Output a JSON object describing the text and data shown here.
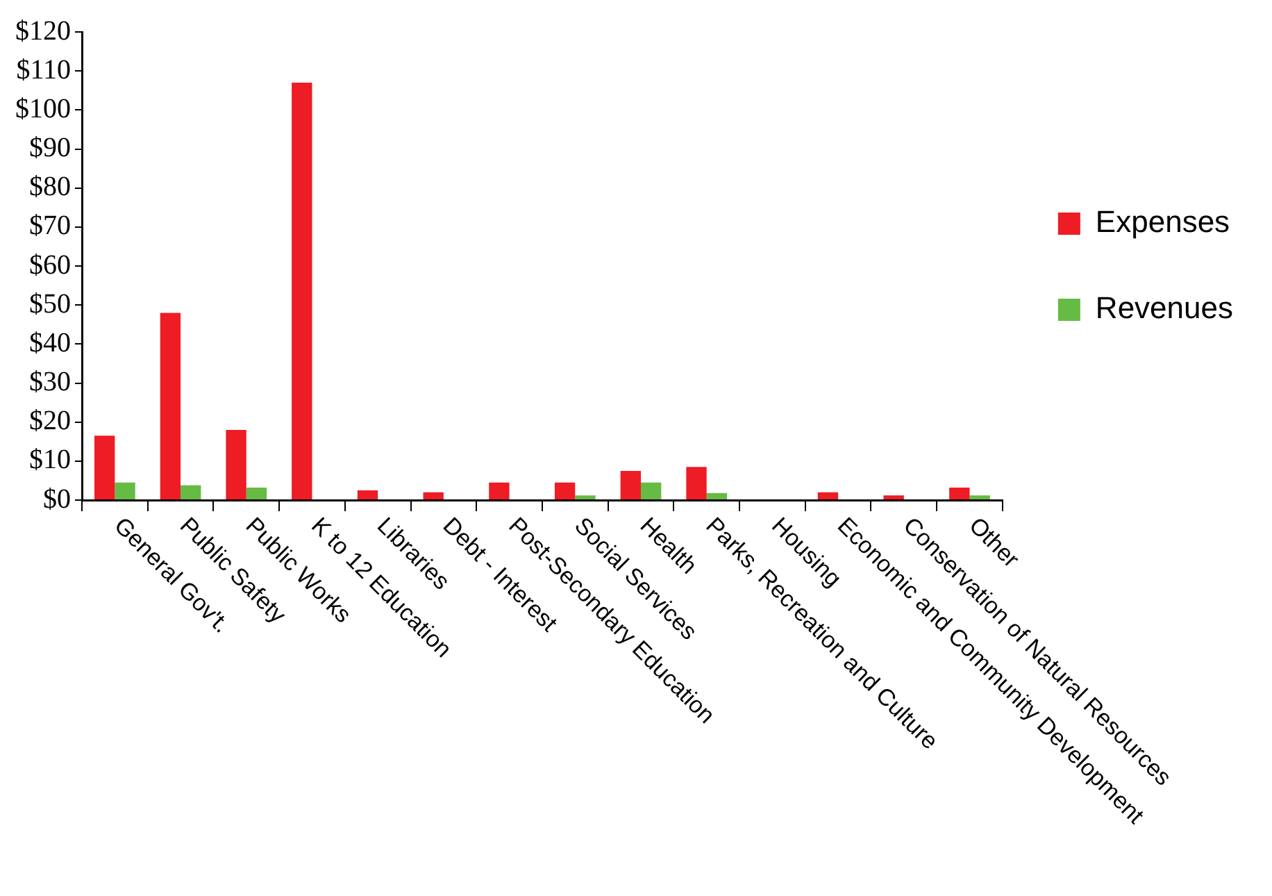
{
  "chart_data": {
    "type": "bar",
    "categories": [
      "General Gov't.",
      "Public Safety",
      "Public Works",
      "K to 12 Education",
      "Libraries",
      "Debt - Interest",
      "Post-Secondary Education",
      "Social Services",
      "Health",
      "Parks, Recreation and Culture",
      "Housing",
      "Economic and Community Development",
      "Conservation of Natural Resources",
      "Other"
    ],
    "series": [
      {
        "name": "Expenses",
        "color": "#ee1c25",
        "values": [
          16.5,
          48,
          18,
          107,
          2.5,
          2,
          4.5,
          4.5,
          7.5,
          8.5,
          0,
          2,
          1.2,
          3.2
        ]
      },
      {
        "name": "Revenues",
        "color": "#66bb44",
        "values": [
          4.5,
          3.8,
          3.2,
          0,
          0,
          0,
          0,
          1.2,
          4.5,
          1.8,
          0,
          0,
          0,
          1.2
        ]
      }
    ],
    "ylim": [
      0,
      120
    ],
    "yticks": [
      {
        "value": 0,
        "label": "$0"
      },
      {
        "value": 10,
        "label": "$10"
      },
      {
        "value": 20,
        "label": "$20"
      },
      {
        "value": 30,
        "label": "$30"
      },
      {
        "value": 40,
        "label": "$40"
      },
      {
        "value": 50,
        "label": "$50"
      },
      {
        "value": 60,
        "label": "$60"
      },
      {
        "value": 70,
        "label": "$70"
      },
      {
        "value": 80,
        "label": "$80"
      },
      {
        "value": 90,
        "label": "$90"
      },
      {
        "value": 100,
        "label": "$100"
      },
      {
        "value": 110,
        "label": "$110"
      },
      {
        "value": 120,
        "label": "$120"
      }
    ],
    "grid": false,
    "legend": "right"
  }
}
